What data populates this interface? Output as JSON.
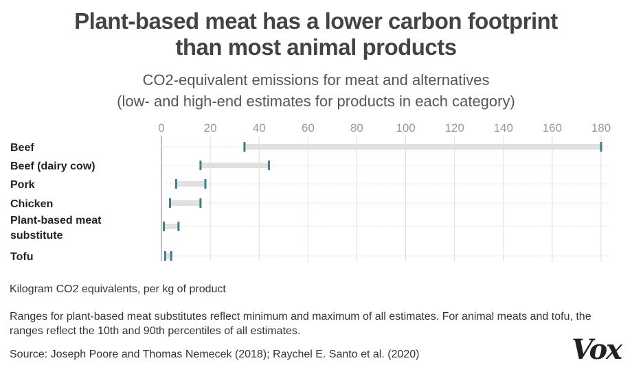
{
  "title_line1": "Plant-based meat has a lower carbon footprint",
  "title_line2": "than most animal products",
  "subtitle_line1": "CO2-equivalent emissions for meat and alternatives",
  "subtitle_line2": "(low- and high-end estimates for products in each category)",
  "unit_note": "Kilogram CO2 equivalents, per kg of product",
  "range_note": "Ranges for plant-based meat substitutes reflect minimum and maximum of all estimates. For animal meats and tofu, the ranges reflect the 10th and 90th percentiles of all estimates.",
  "source_note": "Source: Joseph Poore and Thomas Nemecek (2018); Raychel E. Santo et al. (2020)",
  "logo_text": "Vox",
  "colors": {
    "marker": "#3d7d8c",
    "range_bar": "#e0e0e0",
    "grid": "#dddddd",
    "axis": "#aaaaaa"
  },
  "chart_data": {
    "type": "range",
    "x_ticks": [
      0,
      20,
      40,
      60,
      80,
      100,
      120,
      140,
      160,
      180
    ],
    "xlim": [
      0,
      180
    ],
    "categories": [
      {
        "label_lines": [
          "Beef"
        ],
        "low": 34,
        "high": 180
      },
      {
        "label_lines": [
          "Beef (dairy cow)"
        ],
        "low": 16,
        "high": 44
      },
      {
        "label_lines": [
          "Pork"
        ],
        "low": 6,
        "high": 18
      },
      {
        "label_lines": [
          "Chicken"
        ],
        "low": 3.5,
        "high": 16
      },
      {
        "label_lines": [
          "Plant-based meat",
          "substitute"
        ],
        "low": 1,
        "high": 7
      },
      {
        "label_lines": [
          "Tofu"
        ],
        "low": 1.5,
        "high": 4
      }
    ]
  }
}
